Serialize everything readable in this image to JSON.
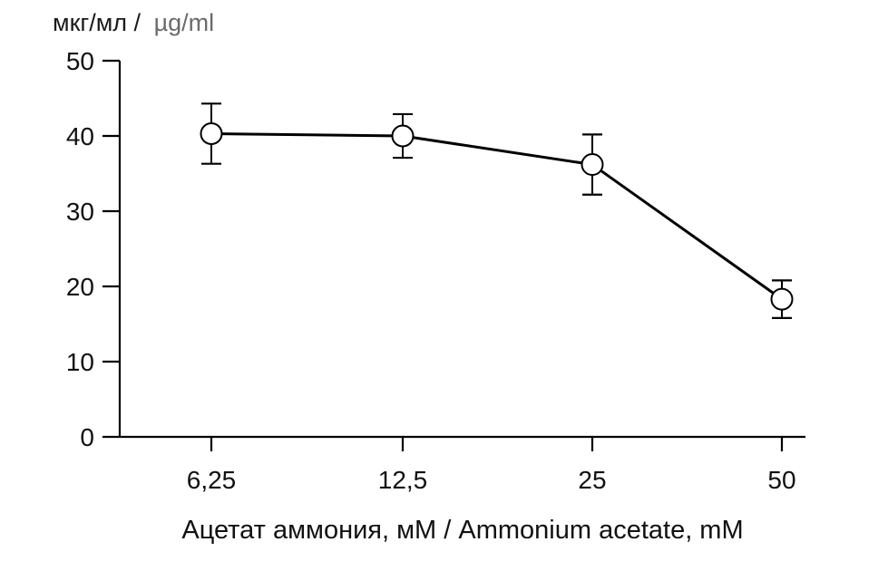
{
  "chart_data": {
    "type": "line",
    "y_unit_label_ru": "мкг/мл /",
    "y_unit_label_en": "µg/ml",
    "xlabel": "Ацетат аммония, мМ / Ammonium acetate, mM",
    "categories": [
      "6,25",
      "12,5",
      "25",
      "50"
    ],
    "series": [
      {
        "values": [
          40.3,
          40.0,
          36.2,
          18.3
        ],
        "error": [
          4.0,
          2.9,
          4.0,
          2.5
        ],
        "color": "#000000",
        "marker": "open-circle"
      }
    ],
    "ylim": [
      0,
      50
    ],
    "yticks": [
      0,
      10,
      20,
      30,
      40,
      50
    ],
    "grid": false,
    "legend": "none"
  }
}
